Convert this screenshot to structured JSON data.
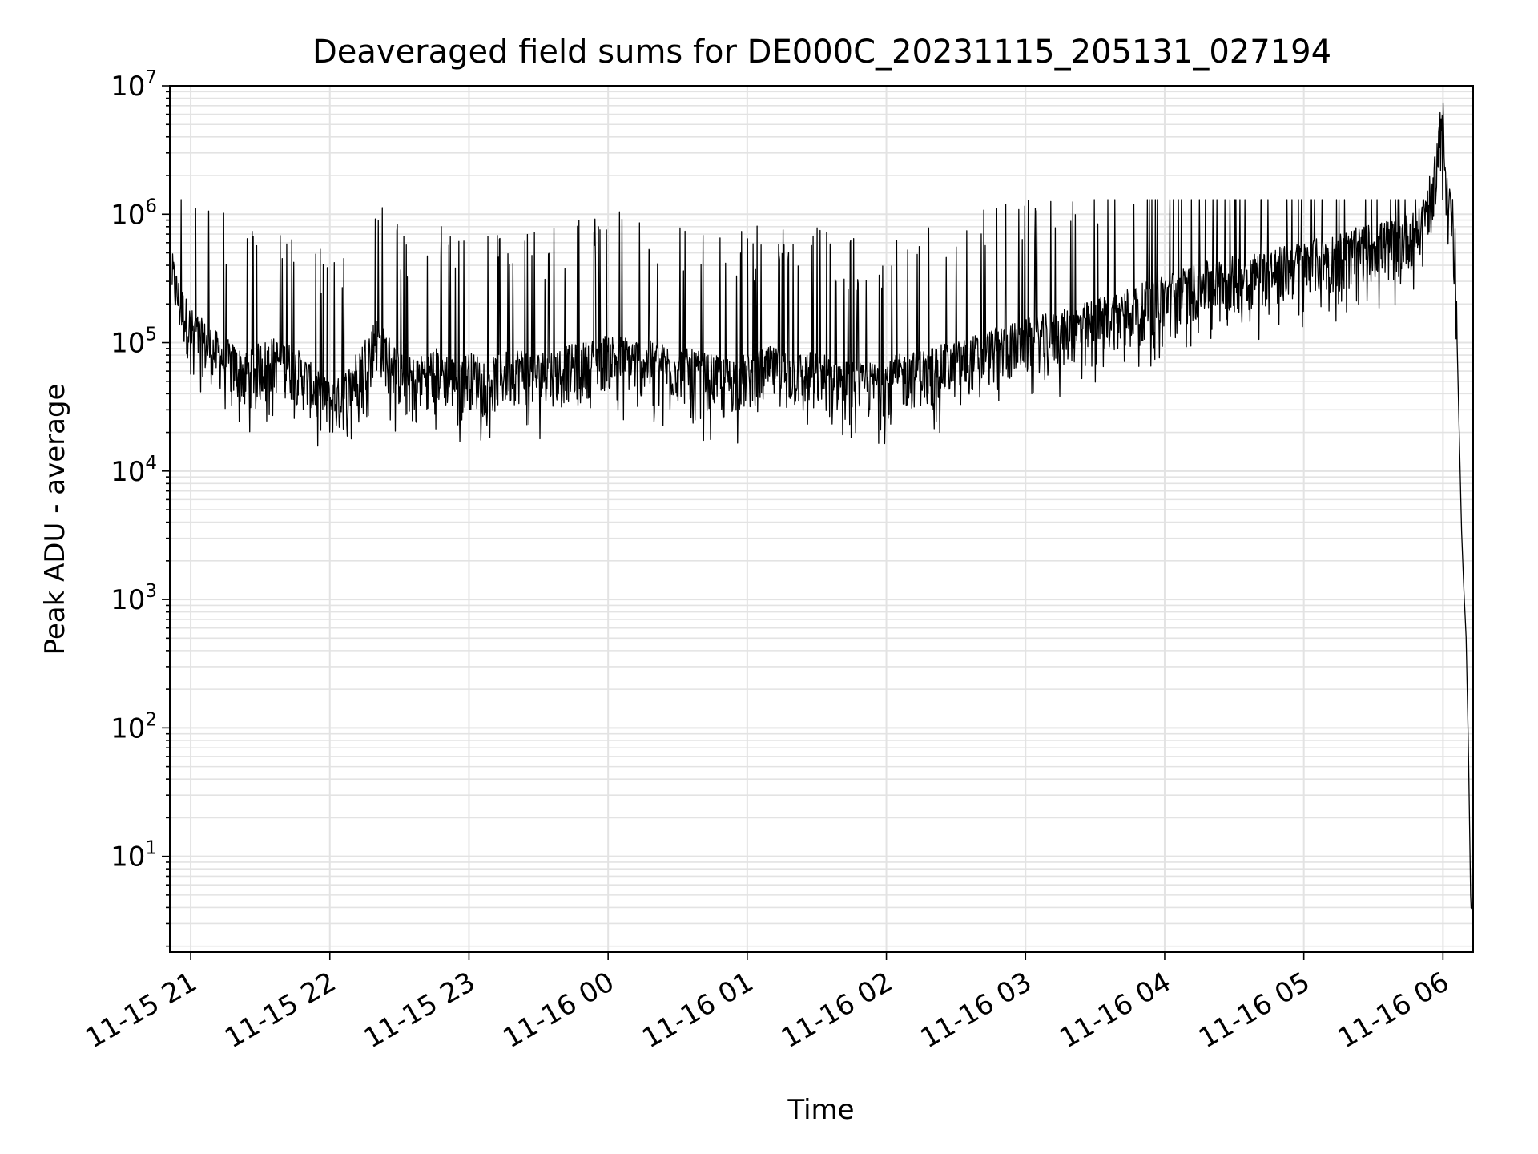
{
  "chart_data": {
    "type": "line",
    "title": "Deaveraged field sums for DE000C_20231115_205131_027194",
    "xlabel": "Time",
    "ylabel": "Peak ADU - average",
    "yscale": "log",
    "ylim": [
      1.8,
      10000000
    ],
    "xlim": [
      "2023-11-15 20:51",
      "2023-11-16 06:13"
    ],
    "grid": "major and minor",
    "line_color": "#000000",
    "x_tick_labels": [
      "11-15 21",
      "11-15 22",
      "11-15 23",
      "11-16 00",
      "11-16 01",
      "11-16 02",
      "11-16 03",
      "11-16 04",
      "11-16 05",
      "11-16 06"
    ],
    "y_tick_labels": [
      {
        "base": "10",
        "exp": "1"
      },
      {
        "base": "10",
        "exp": "2"
      },
      {
        "base": "10",
        "exp": "3"
      },
      {
        "base": "10",
        "exp": "4"
      },
      {
        "base": "10",
        "exp": "5"
      },
      {
        "base": "10",
        "exp": "6"
      },
      {
        "base": "10",
        "exp": "7"
      }
    ],
    "series": [
      {
        "points": [
          [
            "2023-11-15 20:52",
            300000
          ],
          [
            "2023-11-15 20:55",
            180000
          ],
          [
            "2023-11-15 21:00",
            110000
          ],
          [
            "2023-11-15 21:05",
            90000
          ],
          [
            "2023-11-15 21:10",
            75000
          ],
          [
            "2023-11-15 21:15",
            65000
          ],
          [
            "2023-11-15 21:20",
            55000
          ],
          [
            "2023-11-15 21:25",
            50000
          ],
          [
            "2023-11-15 21:30",
            60000
          ],
          [
            "2023-11-15 21:35",
            65000
          ],
          [
            "2023-11-15 21:40",
            62000
          ],
          [
            "2023-11-15 21:45",
            55000
          ],
          [
            "2023-11-15 21:50",
            45000
          ],
          [
            "2023-11-15 21:55",
            35000
          ],
          [
            "2023-11-15 22:00",
            30000
          ],
          [
            "2023-11-15 22:05",
            32000
          ],
          [
            "2023-11-15 22:10",
            45000
          ],
          [
            "2023-11-15 22:15",
            65000
          ],
          [
            "2023-11-15 22:20",
            95000
          ],
          [
            "2023-11-15 22:25",
            70000
          ],
          [
            "2023-11-15 22:30",
            50000
          ],
          [
            "2023-11-15 22:35",
            45000
          ],
          [
            "2023-11-15 22:40",
            48000
          ],
          [
            "2023-11-15 22:45",
            55000
          ],
          [
            "2023-11-15 22:50",
            50000
          ],
          [
            "2023-11-15 22:55",
            45000
          ],
          [
            "2023-11-15 23:00",
            50000
          ],
          [
            "2023-11-15 23:10",
            45000
          ],
          [
            "2023-11-15 23:20",
            55000
          ],
          [
            "2023-11-15 23:30",
            50000
          ],
          [
            "2023-11-15 23:40",
            55000
          ],
          [
            "2023-11-15 23:50",
            60000
          ],
          [
            "2023-11-16 00:00",
            70000
          ],
          [
            "2023-11-16 00:10",
            65000
          ],
          [
            "2023-11-16 00:20",
            60000
          ],
          [
            "2023-11-16 00:30",
            55000
          ],
          [
            "2023-11-16 00:40",
            50000
          ],
          [
            "2023-11-16 00:50",
            45000
          ],
          [
            "2023-11-16 01:00",
            48000
          ],
          [
            "2023-11-16 01:10",
            55000
          ],
          [
            "2023-11-16 01:20",
            50000
          ],
          [
            "2023-11-16 01:30",
            50000
          ],
          [
            "2023-11-16 01:40",
            45000
          ],
          [
            "2023-11-16 01:50",
            40000
          ],
          [
            "2023-11-16 02:00",
            45000
          ],
          [
            "2023-11-16 02:10",
            50000
          ],
          [
            "2023-11-16 02:20",
            55000
          ],
          [
            "2023-11-16 02:30",
            60000
          ],
          [
            "2023-11-16 02:40",
            70000
          ],
          [
            "2023-11-16 02:50",
            80000
          ],
          [
            "2023-11-16 03:00",
            90000
          ],
          [
            "2023-11-16 03:10",
            100000
          ],
          [
            "2023-11-16 03:20",
            110000
          ],
          [
            "2023-11-16 03:30",
            130000
          ],
          [
            "2023-11-16 03:40",
            150000
          ],
          [
            "2023-11-16 03:50",
            170000
          ],
          [
            "2023-11-16 04:00",
            200000
          ],
          [
            "2023-11-16 04:10",
            230000
          ],
          [
            "2023-11-16 04:20",
            260000
          ],
          [
            "2023-11-16 04:30",
            280000
          ],
          [
            "2023-11-16 04:40",
            300000
          ],
          [
            "2023-11-16 04:50",
            330000
          ],
          [
            "2023-11-16 05:00",
            360000
          ],
          [
            "2023-11-16 05:10",
            400000
          ],
          [
            "2023-11-16 05:20",
            450000
          ],
          [
            "2023-11-16 05:30",
            500000
          ],
          [
            "2023-11-16 05:40",
            550000
          ],
          [
            "2023-11-16 05:50",
            650000
          ],
          [
            "2023-11-16 05:56",
            1500000
          ],
          [
            "2023-11-16 06:00",
            5800000
          ],
          [
            "2023-11-16 06:02",
            1200000
          ],
          [
            "2023-11-16 06:05",
            700000
          ],
          [
            "2023-11-16 06:07",
            20000
          ],
          [
            "2023-11-16 06:08",
            3500
          ],
          [
            "2023-11-16 06:09",
            1200
          ],
          [
            "2023-11-16 06:10",
            500
          ],
          [
            "2023-11-16 06:11",
            65
          ],
          [
            "2023-11-16 06:12",
            4
          ],
          [
            "2023-11-16 06:13",
            3.8
          ]
        ]
      }
    ]
  }
}
